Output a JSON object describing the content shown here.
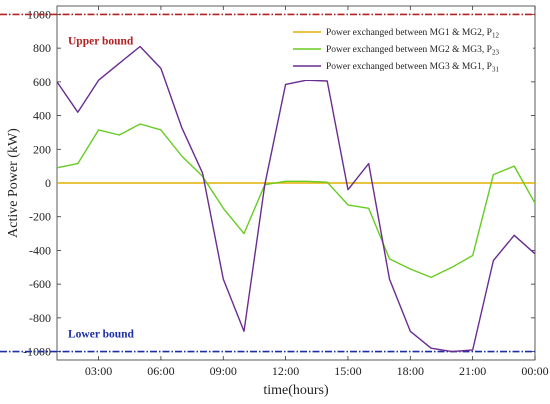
{
  "chart_data": {
    "type": "line",
    "title": "",
    "xlabel": "time(hours)",
    "ylabel": "Active Power (kW)",
    "ylim": [
      -1050,
      1050
    ],
    "xlim": [
      1,
      24
    ],
    "grid": false,
    "legend_position": "top-right",
    "x_tick_labels": [
      {
        "x": 3,
        "label": "03:00"
      },
      {
        "x": 6,
        "label": "06:00"
      },
      {
        "x": 9,
        "label": "09:00"
      },
      {
        "x": 12,
        "label": "12:00"
      },
      {
        "x": 15,
        "label": "15:00"
      },
      {
        "x": 18,
        "label": "18:00"
      },
      {
        "x": 21,
        "label": "21:00"
      },
      {
        "x": 24,
        "label": "00:00"
      }
    ],
    "y_ticks": [
      -1000,
      -800,
      -600,
      -400,
      -200,
      0,
      200,
      400,
      600,
      800,
      1000
    ],
    "x": [
      1,
      2,
      3,
      4,
      5,
      6,
      7,
      8,
      9,
      10,
      11,
      12,
      13,
      14,
      15,
      16,
      17,
      18,
      19,
      20,
      21,
      22,
      23,
      24
    ],
    "series": [
      {
        "name": "Power exchanged between MG1 & MG2, P",
        "subscript": "12",
        "color": "#e0b000",
        "values": [
          0,
          0,
          0,
          0,
          0,
          0,
          0,
          0,
          0,
          0,
          0,
          0,
          0,
          0,
          0,
          0,
          0,
          0,
          0,
          0,
          0,
          0,
          0,
          0
        ]
      },
      {
        "name": "Power exchanged between MG2 & MG3, P",
        "subscript": "23",
        "color": "#66cc22",
        "values": [
          90,
          115,
          315,
          285,
          350,
          315,
          160,
          40,
          -150,
          -300,
          -10,
          10,
          10,
          5,
          -130,
          -150,
          -450,
          -510,
          -560,
          -500,
          -430,
          50,
          100,
          -120
        ]
      },
      {
        "name": "Power exchanged between MG3 & MG1, P",
        "subscript": "31",
        "color": "#6a2d8f",
        "values": [
          600,
          420,
          610,
          710,
          810,
          680,
          330,
          60,
          -570,
          -880,
          -10,
          585,
          610,
          605,
          -40,
          115,
          -570,
          -880,
          -980,
          -1000,
          -990,
          -460,
          -310,
          -420
        ]
      }
    ],
    "bounds": [
      {
        "label": "Upper bound",
        "value": 1000,
        "color": "#b22222"
      },
      {
        "label": "Lower bound",
        "value": -1000,
        "color": "#1c2fa8"
      }
    ]
  }
}
